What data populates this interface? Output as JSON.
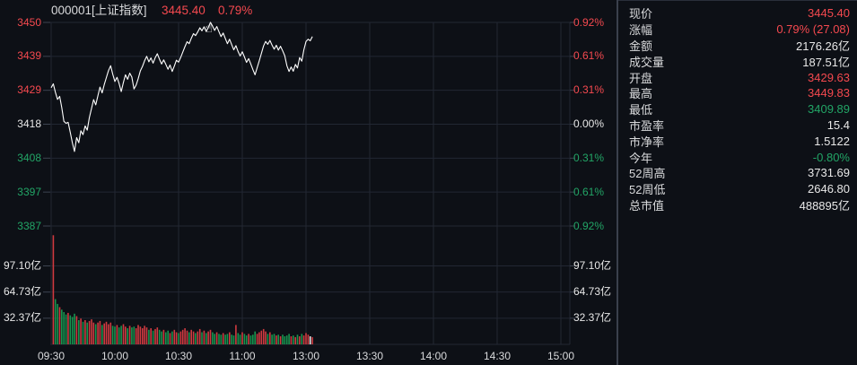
{
  "header": {
    "code": "000001[上证指数]",
    "price": "3445.40",
    "change": "0.79%"
  },
  "colors": {
    "up": "#f5494f",
    "down": "#22a566",
    "neutral": "#e8e8e8",
    "line": "#ffffff",
    "bar_up": "#cf3a40",
    "bar_down": "#17954f",
    "bar_flat": "#e9e9e9",
    "grid": "#222733",
    "tick": "#3d4350",
    "bg": "#0d1016",
    "divider": "#3a404c"
  },
  "axes": {
    "price_left": [
      {
        "t": "3450",
        "c": "up"
      },
      {
        "t": "3439",
        "c": "up"
      },
      {
        "t": "3429",
        "c": "up"
      },
      {
        "t": "3418",
        "c": "neutral"
      },
      {
        "t": "3408",
        "c": "down"
      },
      {
        "t": "3397",
        "c": "down"
      },
      {
        "t": "3387",
        "c": "down"
      }
    ],
    "pct_right": [
      {
        "t": "0.92%",
        "c": "up"
      },
      {
        "t": "0.61%",
        "c": "up"
      },
      {
        "t": "0.31%",
        "c": "up"
      },
      {
        "t": "0.00%",
        "c": "neutral"
      },
      {
        "t": "0.31%",
        "c": "down"
      },
      {
        "t": "0.61%",
        "c": "down"
      },
      {
        "t": "0.92%",
        "c": "down"
      }
    ],
    "volume_ticks": [
      "97.10亿",
      "64.73亿",
      "32.37亿"
    ],
    "time": [
      "09:30",
      "10:00",
      "10:30",
      "11:00",
      "13:00",
      "13:30",
      "14:00",
      "14:30",
      "15:00"
    ]
  },
  "chart_data": {
    "type": "line+bar",
    "title": "000001[上证指数] 3445.40 0.79%",
    "prev_close": 3418.32,
    "price_ylim": [
      3386.87,
      3449.77
    ],
    "pct_ylim": [
      -0.92,
      0.92
    ],
    "volume_ylim": [
      0,
      97.1
    ],
    "session_minutes": 240,
    "minutes_per_tick": 30,
    "prices": [
      3429.6,
      3430.8,
      3428.2,
      3426.0,
      3426.9,
      3423.5,
      3419.2,
      3418.6,
      3418.9,
      3415.8,
      3412.5,
      3409.9,
      3414.2,
      3412.6,
      3416.3,
      3415.1,
      3417.8,
      3416.5,
      3420.4,
      3423.2,
      3425.9,
      3424.3,
      3427.1,
      3429.8,
      3428.0,
      3430.6,
      3432.7,
      3434.9,
      3436.4,
      3433.8,
      3431.5,
      3432.8,
      3430.9,
      3428.4,
      3431.2,
      3433.6,
      3432.2,
      3434.1,
      3432.9,
      3429.2,
      3430.4,
      3432.4,
      3434.8,
      3436.2,
      3437.9,
      3439.3,
      3437.6,
      3438.8,
      3437.2,
      3438.9,
      3440.1,
      3438.4,
      3436.9,
      3438.2,
      3436.8,
      3435.3,
      3436.6,
      3434.6,
      3436.3,
      3438.1,
      3437.5,
      3439.0,
      3440.6,
      3442.3,
      3443.8,
      3443.2,
      3444.9,
      3446.3,
      3445.7,
      3446.8,
      3448.1,
      3447.2,
      3448.4,
      3447.0,
      3448.2,
      3449.8,
      3448.6,
      3447.3,
      3448.5,
      3446.9,
      3445.4,
      3446.5,
      3444.8,
      3443.2,
      3444.6,
      3442.9,
      3441.3,
      3442.6,
      3440.8,
      3439.4,
      3440.7,
      3439.1,
      3437.4,
      3438.6,
      3436.9,
      3435.2,
      3433.6,
      3435.8,
      3437.9,
      3440.2,
      3442.5,
      3443.9,
      3443.0,
      3444.2,
      3442.8,
      3441.5,
      3442.7,
      3441.2,
      3442.4,
      3441.0,
      3439.5,
      3436.4,
      3434.6,
      3436.0,
      3434.7,
      3436.8,
      3435.7,
      3438.9,
      3437.8,
      3441.3,
      3443.9,
      3444.6,
      3444.1,
      3445.4
    ],
    "volumes": [
      135,
      56,
      50,
      46,
      43,
      40,
      37,
      39,
      36,
      34,
      38,
      35,
      30,
      32,
      28,
      30,
      27,
      29,
      31,
      27,
      25,
      27,
      29,
      24,
      26,
      28,
      25,
      27,
      23,
      22,
      24,
      21,
      23,
      25,
      22,
      20,
      23,
      21,
      22,
      20,
      24,
      22,
      20,
      23,
      21,
      18,
      20,
      17,
      19,
      21,
      18,
      16,
      18,
      15,
      17,
      14,
      16,
      18,
      15,
      14,
      16,
      18,
      20,
      17,
      15,
      18,
      16,
      14,
      16,
      19,
      15,
      17,
      14,
      16,
      18,
      15,
      13,
      15,
      13,
      12,
      14,
      12,
      13,
      15,
      12,
      11,
      24,
      14,
      12,
      15,
      13,
      11,
      13,
      11,
      12,
      16,
      13,
      15,
      17,
      19,
      16,
      13,
      15,
      12,
      13,
      11,
      12,
      10,
      12,
      10,
      11,
      13,
      10,
      11,
      9,
      12,
      10,
      13,
      11,
      14,
      12,
      10,
      9
    ],
    "white_volume_index": 121,
    "stats_summary": {
      "open": 3429.63,
      "high": 3449.83,
      "low": 3409.89,
      "current": 3445.4,
      "change_pct": 0.79,
      "change_abs": 27.08
    }
  },
  "stats": {
    "rows": [
      {
        "label": "现价",
        "value": "3445.40",
        "c": "up"
      },
      {
        "label": "涨幅",
        "value": "0.79% (27.08)",
        "c": "up"
      },
      {
        "label": "金额",
        "value": "2176.26亿",
        "c": "neutral"
      },
      {
        "label": "成交量",
        "value": "187.51亿",
        "c": "neutral"
      },
      {
        "label": "开盘",
        "value": "3429.63",
        "c": "up"
      },
      {
        "label": "最高",
        "value": "3449.83",
        "c": "up"
      },
      {
        "label": "最低",
        "value": "3409.89",
        "c": "down"
      },
      {
        "label": "市盈率",
        "value": "15.4",
        "c": "neutral"
      },
      {
        "label": "市净率",
        "value": "1.5122",
        "c": "neutral"
      },
      {
        "label": "今年",
        "value": "-0.80%",
        "c": "down"
      },
      {
        "label": "52周高",
        "value": "3731.69",
        "c": "neutral"
      },
      {
        "label": "52周低",
        "value": "2646.80",
        "c": "neutral"
      },
      {
        "label": "总市值",
        "value": "488895亿",
        "c": "neutral"
      }
    ]
  },
  "cursor": {
    "glyph": "☝"
  }
}
